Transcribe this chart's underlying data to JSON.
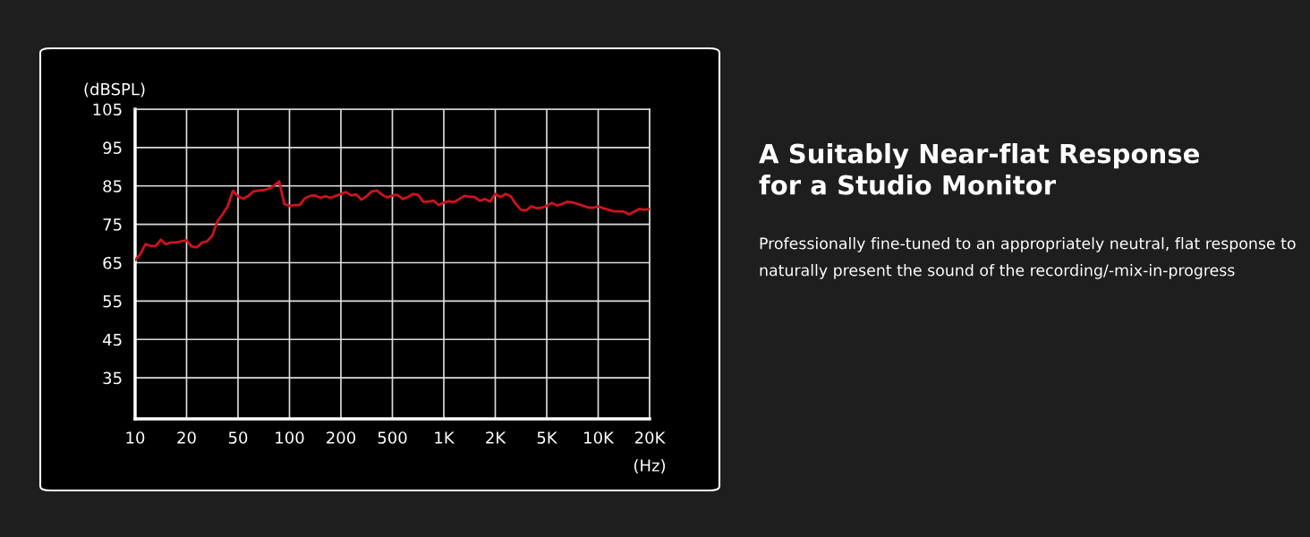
{
  "chart_data": {
    "type": "line",
    "title": "A Suitably Near-flat Response\nfor a Studio Monitor",
    "annotations": [
      "Professionally fine-tuned to an appropriately neutral, flat response to naturally present the sound of the recording/-mix-in-progress"
    ],
    "ylabel": "(dBSPL)",
    "xlabel": "(Hz)",
    "categories": [
      "10",
      null,
      null,
      null,
      null,
      null,
      null,
      null,
      null,
      null,
      "20",
      null,
      null,
      null,
      null,
      null,
      null,
      null,
      null,
      null,
      "50",
      null,
      null,
      null,
      null,
      null,
      null,
      null,
      null,
      null,
      "100",
      null,
      null,
      null,
      null,
      null,
      null,
      null,
      null,
      null,
      "200",
      null,
      null,
      null,
      null,
      null,
      null,
      null,
      null,
      null,
      "500",
      null,
      null,
      null,
      null,
      null,
      null,
      null,
      null,
      null,
      "1K",
      null,
      null,
      null,
      null,
      null,
      null,
      null,
      null,
      null,
      "2K",
      null,
      null,
      null,
      null,
      null,
      null,
      null,
      null,
      null,
      "5K",
      null,
      null,
      null,
      null,
      null,
      null,
      null,
      null,
      null,
      "10K",
      null,
      null,
      null,
      null,
      null,
      null,
      null,
      null,
      null,
      "20K"
    ],
    "ylim": [
      24.3,
      105
    ],
    "yticks": [
      35,
      45,
      55,
      65,
      75,
      85,
      95,
      105
    ],
    "grid": true,
    "marker": "none",
    "line_style": "solid",
    "series": [
      {
        "color": "#d0121e",
        "values": [
          65.7,
          67.2,
          69.8,
          69.4,
          69.3,
          71.0,
          69.8,
          70.3,
          70.3,
          70.6,
          70.8,
          69.2,
          69.0,
          70.2,
          70.6,
          72.0,
          75.8,
          77.6,
          79.7,
          83.7,
          82.3,
          81.7,
          82.4,
          83.6,
          83.8,
          83.9,
          84.3,
          85.1,
          86.2,
          80.3,
          79.8,
          80.0,
          80.0,
          81.8,
          82.4,
          82.5,
          81.9,
          82.3,
          81.9,
          82.4,
          82.9,
          83.4,
          82.5,
          82.8,
          81.4,
          82.3,
          83.6,
          83.8,
          82.7,
          82.0,
          82.5,
          82.7,
          81.6,
          82.1,
          82.9,
          82.7,
          80.9,
          80.9,
          81.2,
          80.0,
          80.7,
          81.0,
          80.8,
          81.6,
          82.4,
          82.2,
          82.1,
          81.1,
          81.6,
          80.9,
          82.9,
          82.1,
          82.9,
          82.3,
          80.3,
          78.8,
          78.6,
          79.7,
          79.2,
          79.3,
          79.8,
          80.6,
          79.9,
          80.3,
          80.9,
          80.7,
          80.3,
          79.9,
          79.4,
          79.3,
          79.7,
          79.2,
          78.8,
          78.4,
          78.4,
          78.3,
          77.6,
          78.3,
          79.0,
          78.8,
          79.0
        ]
      }
    ]
  }
}
